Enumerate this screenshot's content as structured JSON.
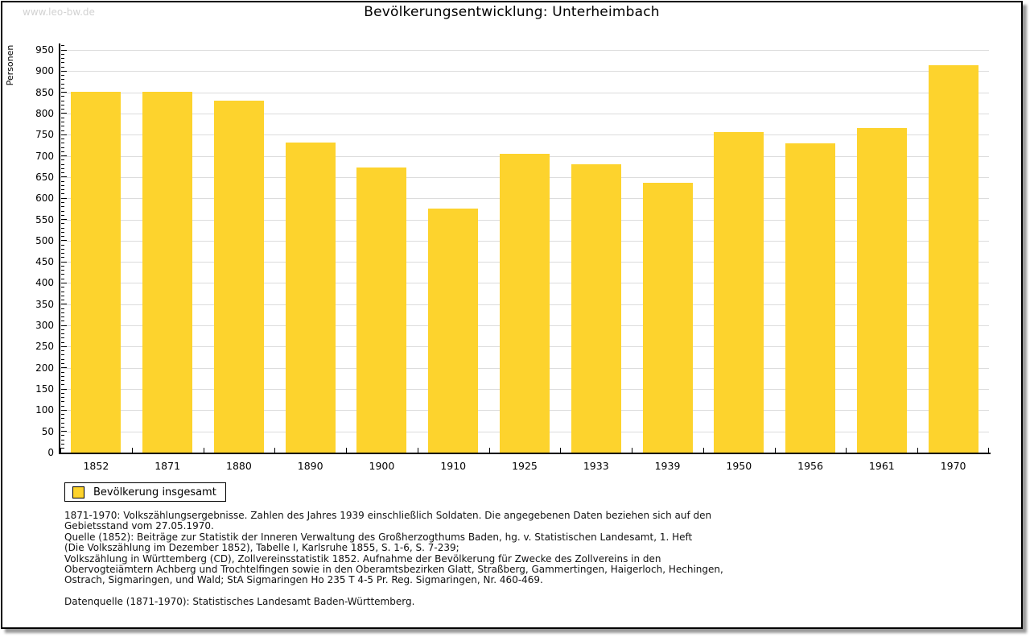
{
  "watermark": "www.leo-bw.de",
  "title": "Bevölkerungsentwicklung: Unterheimbach",
  "chart_data": {
    "type": "bar",
    "title": "Bevölkerungsentwicklung: Unterheimbach",
    "xlabel": "",
    "ylabel": "Personen",
    "categories": [
      "1852",
      "1871",
      "1880",
      "1890",
      "1900",
      "1910",
      "1925",
      "1933",
      "1939",
      "1950",
      "1956",
      "1961",
      "1970"
    ],
    "values": [
      851,
      851,
      830,
      731,
      672,
      575,
      704,
      680,
      636,
      756,
      729,
      766,
      913
    ],
    "series_name": "Bevölkerung insgesamt",
    "ylim": [
      0,
      950
    ],
    "ytick_step": 50,
    "minor_tick_step": 10,
    "grid": true,
    "legend_position": "bottom-left",
    "bar_color": "#FDD32D"
  },
  "legend": {
    "label": "Bevölkerung insgesamt",
    "swatch_color": "#FDD32D"
  },
  "footer": {
    "lines": [
      "1871-1970: Volkszählungsergebnisse. Zahlen des Jahres 1939 einschließlich Soldaten. Die angegebenen Daten beziehen sich auf den",
      "Gebietsstand vom 27.05.1970.",
      "Quelle (1852): Beiträge zur Statistik der Inneren Verwaltung des Großherzogthums Baden, hg. v. Statistischen Landesamt, 1. Heft",
      "(Die Volkszählung im Dezember 1852), Tabelle I, Karlsruhe 1855, S. 1-6, S. 7-239;",
      "Volkszählung in Württemberg (CD), Zollvereinsstatistik 1852. Aufnahme der Bevölkerung für Zwecke des Zollvereins in den",
      "Obervogteiämtern Achberg und Trochtelfingen sowie in den Oberamtsbezirken Glatt, Straßberg, Gammertingen, Haigerloch, Hechingen,",
      "Ostrach, Sigmaringen, und Wald; StA Sigmaringen Ho 235 T 4-5 Pr. Reg. Sigmaringen, Nr. 460-469."
    ],
    "source_line": "Datenquelle (1871-1970): Statistisches Landesamt Baden-Württemberg."
  },
  "colors": {
    "bar": "#FDD32D",
    "grid": "#DCDCDC",
    "axis": "#000000",
    "watermark": "#D2D2D2"
  }
}
